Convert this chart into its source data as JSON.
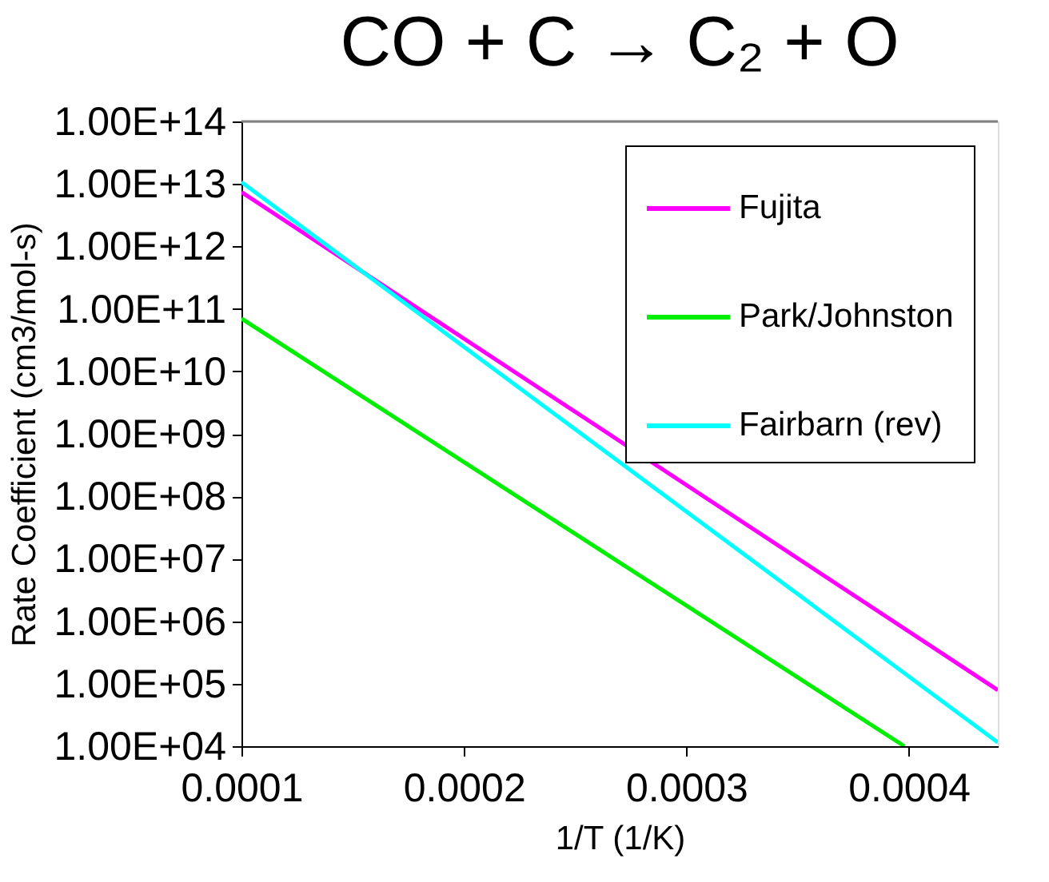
{
  "chart_data": {
    "type": "line",
    "title": "CO + C → C₂ + O",
    "xlabel": "1/T (1/K)",
    "ylabel": "Rate Coefficient (cm3/mol-s)",
    "log": "y",
    "grid": false,
    "legend": "top right",
    "marker": "none",
    "line_style": "solid",
    "xlim": [
      0.0001,
      0.00044
    ],
    "xticks": [
      0.0001,
      0.0002,
      0.0003,
      0.0004
    ],
    "ylim": [
      10000,
      100000000000000
    ],
    "yticks": [
      {
        "value": 100000000000000,
        "label": "1.00E+14"
      },
      {
        "value": 10000000000000,
        "label": "1.00E+13"
      },
      {
        "value": 1000000000000,
        "label": "1.00E+12"
      },
      {
        "value": 100000000000,
        "label": "1.00E+11"
      },
      {
        "value": 10000000000,
        "label": "1.00E+10"
      },
      {
        "value": 1000000000,
        "label": "1.00E+09"
      },
      {
        "value": 100000000,
        "label": "1.00E+08"
      },
      {
        "value": 10000000,
        "label": "1.00E+07"
      },
      {
        "value": 1000000,
        "label": "1.00E+06"
      },
      {
        "value": 100000,
        "label": "1.00E+05"
      },
      {
        "value": 10000,
        "label": "1.00E+04"
      }
    ],
    "series": [
      {
        "name": "Fujita",
        "color": "#ff00ff",
        "x": [
          0.0001,
          0.00044
        ],
        "values": [
          7400000000000,
          79000
        ]
      },
      {
        "name": "Park/Johnston",
        "color": "#00ee00",
        "x": [
          0.0001,
          0.000398
        ],
        "values": [
          70000000000,
          10000
        ]
      },
      {
        "name": "Fairbarn (rev)",
        "color": "#00ffff",
        "x": [
          0.0001,
          0.00044
        ],
        "values": [
          10700000000000,
          11500
        ]
      }
    ]
  }
}
